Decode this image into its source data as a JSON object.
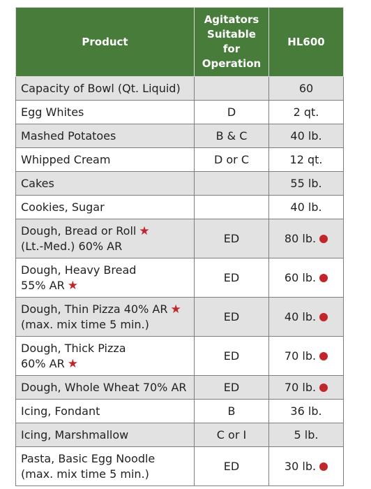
{
  "colors": {
    "header_bg": "#487c3b",
    "marker_red": "#c0272d",
    "row_shade": "#e2e2e2"
  },
  "header": {
    "product": "Product",
    "agitators": "Agitators Suitable for Operation",
    "model": "HL600"
  },
  "rows": [
    {
      "product": "Capacity of Bowl (Qt. Liquid)",
      "star": false,
      "agitators": "",
      "hl600": "60",
      "dot": false
    },
    {
      "product": "Egg Whites",
      "star": false,
      "agitators": "D",
      "hl600": "2 qt.",
      "dot": false
    },
    {
      "product": "Mashed Potatoes",
      "star": false,
      "agitators": "B & C",
      "hl600": "40 lb.",
      "dot": false
    },
    {
      "product": "Whipped Cream",
      "star": false,
      "agitators": "D or C",
      "hl600": "12 qt.",
      "dot": false
    },
    {
      "product": "Cakes",
      "star": false,
      "agitators": "",
      "hl600": "55 lb.",
      "dot": false
    },
    {
      "product": "Cookies, Sugar",
      "star": false,
      "agitators": "",
      "hl600": "40 lb.",
      "dot": false
    },
    {
      "product": "Dough, Bread or Roll",
      "product2": "(Lt.-Med.) 60% AR",
      "star": true,
      "agitators": "ED",
      "hl600": "80 lb.",
      "dot": true
    },
    {
      "product": "Dough, Heavy Bread",
      "product2": "55% AR",
      "star": true,
      "agitators": "ED",
      "hl600": "60 lb.",
      "dot": true
    },
    {
      "product": "Dough, Thin Pizza 40% AR",
      "product2": "(max. mix time 5 min.)",
      "star": true,
      "agitators": "ED",
      "hl600": "40 lb.",
      "dot": true
    },
    {
      "product": "Dough, Thick Pizza",
      "product2": "60% AR",
      "star": true,
      "agitators": "ED",
      "hl600": "70 lb.",
      "dot": true
    },
    {
      "product": "Dough, Whole Wheat 70% AR",
      "star": false,
      "agitators": "ED",
      "hl600": "70 lb.",
      "dot": true
    },
    {
      "product": "Icing, Fondant",
      "star": false,
      "agitators": "B",
      "hl600": "36 lb.",
      "dot": false
    },
    {
      "product": "Icing, Marshmallow",
      "star": false,
      "agitators": "C or I",
      "hl600": "5 lb.",
      "dot": false
    },
    {
      "product": "Pasta, Basic Egg Noodle",
      "product2": "(max. mix time 5 min.)",
      "star": false,
      "agitators": "ED",
      "hl600": "30 lb.",
      "dot": true
    }
  ]
}
